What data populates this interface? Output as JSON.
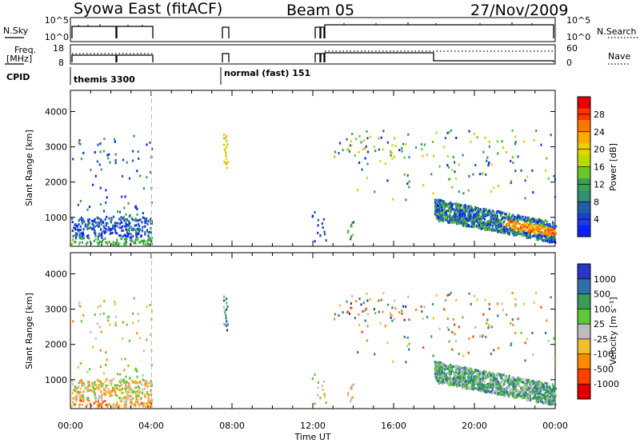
{
  "header": {
    "station": "Syowa East (fitACF)",
    "beam": "Beam 05",
    "date": "27/Nov/2009"
  },
  "nsky_panel": {
    "left_label": "N.Sky",
    "right_label": "N.Search",
    "left_ticks": [
      "10^5",
      "10^0"
    ],
    "right_ticks": [
      "10^5",
      "10^0"
    ]
  },
  "freq_panel": {
    "left_label_line1": "Freq.",
    "left_label_line2": "[MHz]",
    "right_label": "Nave",
    "left_ticks": [
      "18",
      "8"
    ],
    "right_ticks": [
      "60",
      "0"
    ]
  },
  "cpid_panel": {
    "label": "CPID",
    "entries": [
      "themis 3300",
      "normal (fast) 151"
    ]
  },
  "time_axis": {
    "label": "Time UT",
    "ticks": [
      "00:00",
      "04:00",
      "08:00",
      "12:00",
      "16:00",
      "20:00",
      "00:00"
    ]
  },
  "power_colorbar": {
    "label": "Power [dB]",
    "ticks": [
      "28",
      "24",
      "20",
      "16",
      "12",
      "8",
      "4"
    ],
    "colors": [
      "#e60000",
      "#ff3300",
      "#ff7700",
      "#ffaa00",
      "#e8d000",
      "#b8dc00",
      "#6cc828",
      "#3aa050",
      "#2f8f73",
      "#1f5fa8",
      "#1d3cd6",
      "#0d1fff"
    ]
  },
  "velocity_colorbar": {
    "label": "Velocity [m s⁻¹]",
    "ticks": [
      "1000",
      "500",
      "100",
      "25",
      "-25",
      "-100",
      "-500",
      "-1000"
    ],
    "colors": [
      "#2a36c8",
      "#2f6fa8",
      "#3a9a58",
      "#5fc83a",
      "#bdbdbd",
      "#f0c030",
      "#ff8a00",
      "#ff4000",
      "#e00000"
    ]
  },
  "chart_data": [
    {
      "type": "heatmap",
      "title": "Power",
      "xlabel": "Time UT",
      "ylabel": "Slant Range [km]",
      "xlim": [
        0,
        24
      ],
      "ylim": [
        180,
        4600
      ],
      "x_tick_labels": [
        "00:00",
        "04:00",
        "08:00",
        "12:00",
        "16:00",
        "20:00",
        "00:00"
      ],
      "y_ticks": [
        1000,
        2000,
        3000,
        4000
      ],
      "colorbar": {
        "label": "Power [dB]",
        "range": [
          0,
          32
        ],
        "ticks": [
          4,
          8,
          12,
          16,
          20,
          24,
          28
        ]
      }
    },
    {
      "type": "heatmap",
      "title": "Velocity",
      "xlabel": "Time UT",
      "ylabel": "Slant Range [km]",
      "xlim": [
        0,
        24
      ],
      "ylim": [
        180,
        4600
      ],
      "x_tick_labels": [
        "00:00",
        "04:00",
        "08:00",
        "12:00",
        "16:00",
        "20:00",
        "00:00"
      ],
      "y_ticks": [
        1000,
        2000,
        3000,
        4000
      ],
      "colorbar": {
        "label": "Velocity [m s⁻¹]",
        "ticks": [
          1000,
          500,
          100,
          25,
          -25,
          -100,
          -500,
          -1000
        ]
      }
    }
  ]
}
